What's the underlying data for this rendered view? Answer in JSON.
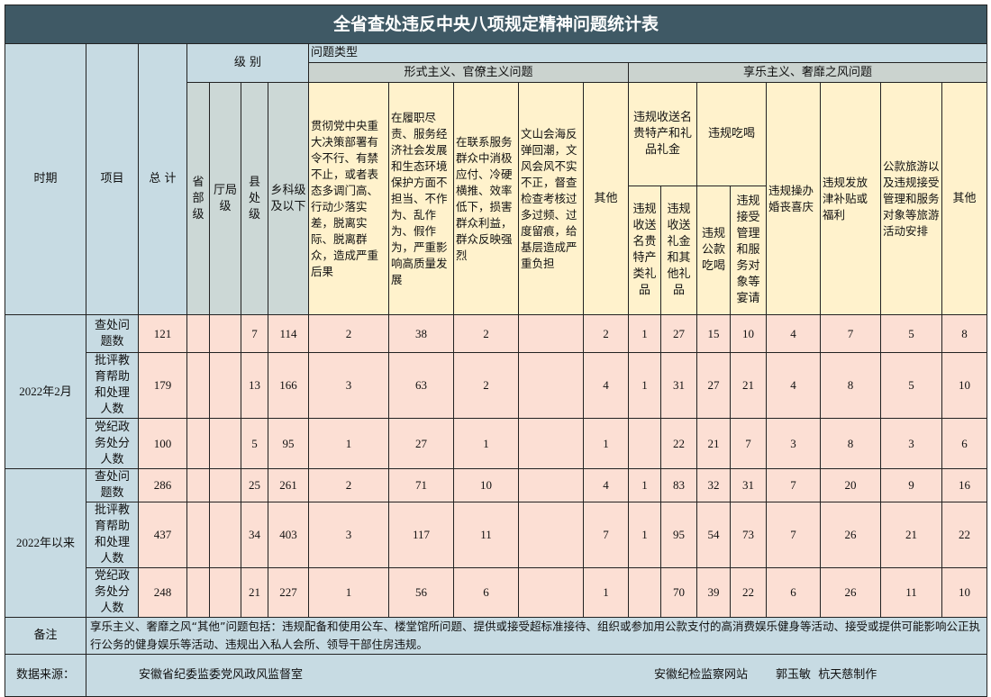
{
  "title": "全省查处违反中央八项规定精神问题统计表",
  "headers": {
    "period": "时期",
    "item": "项目",
    "total": "总 计",
    "level": "级 别",
    "levels": [
      "省部级",
      "厅局级",
      "县处级",
      "乡科级及以下"
    ],
    "problem_type": "问题类型",
    "formalism": {
      "label": "形式主义、官僚主义问题",
      "items": [
        "贯彻党中央重大决策部署有令不行、有禁不止，或者表态多调门高、行动少落实差，脱离实际、脱离群众，造成严重后果",
        "在履职尽责、服务经济社会发展和生态环境保护方面不担当、不作为、乱作为、假作为，严重影响高质量发展",
        "在联系服务群众中消极应付、冷硬横推、效率低下，损害群众利益，群众反映强烈",
        "文山会海反弹回潮，文风会风不实不正，督查检查考核过多过频、过度留痕，给基层造成严重负担",
        "其他"
      ]
    },
    "hedonism": {
      "label": "享乐主义、奢靡之风问题",
      "gifts": {
        "label": "违规收送名贵特产和礼品礼金",
        "subs": [
          "违规收送名贵特产类礼品",
          "违规收送礼金和其他礼品"
        ]
      },
      "dining": {
        "label": "违规吃喝",
        "subs": [
          "违规公款吃喝",
          "违规接受管理和服务对象等宴请"
        ]
      },
      "weddings": "违规操办婚丧喜庆",
      "allowances": "违规发放津补贴或福利",
      "travel": "公款旅游以及违规接受管理和服务对象等旅游活动安排",
      "other": "其他"
    }
  },
  "periods": [
    {
      "label": "2022年2月",
      "rows": [
        {
          "item": "查处问题数",
          "values": [
            "121",
            "",
            "",
            "7",
            "114",
            "2",
            "38",
            "2",
            "",
            "2",
            "1",
            "27",
            "15",
            "10",
            "4",
            "7",
            "5",
            "8"
          ]
        },
        {
          "item": "批评教育帮助和处理人数",
          "values": [
            "179",
            "",
            "",
            "13",
            "166",
            "3",
            "63",
            "2",
            "",
            "4",
            "1",
            "31",
            "27",
            "21",
            "4",
            "8",
            "5",
            "10"
          ]
        },
        {
          "item": "党纪政务处分人数",
          "values": [
            "100",
            "",
            "",
            "5",
            "95",
            "1",
            "27",
            "1",
            "",
            "1",
            "",
            "22",
            "21",
            "7",
            "3",
            "8",
            "3",
            "6"
          ]
        }
      ]
    },
    {
      "label": "2022年以来",
      "rows": [
        {
          "item": "查处问题数",
          "values": [
            "286",
            "",
            "",
            "25",
            "261",
            "2",
            "71",
            "10",
            "",
            "4",
            "1",
            "83",
            "32",
            "31",
            "7",
            "20",
            "9",
            "16"
          ]
        },
        {
          "item": "批评教育帮助和处理人数",
          "values": [
            "437",
            "",
            "",
            "34",
            "403",
            "3",
            "117",
            "11",
            "",
            "7",
            "1",
            "95",
            "54",
            "73",
            "7",
            "26",
            "21",
            "22"
          ]
        },
        {
          "item": "党纪政务处分人数",
          "values": [
            "248",
            "",
            "",
            "21",
            "227",
            "1",
            "56",
            "6",
            "",
            "1",
            "",
            "70",
            "39",
            "22",
            "6",
            "26",
            "11",
            "10"
          ]
        }
      ]
    }
  ],
  "remark": {
    "label": "备注",
    "text": "享乐主义、奢靡之风“其他”问题包括：违规配备和使用公车、楼堂馆所问题、提供或接受超标准接待、组织或参加用公款支付的高消费娱乐健身等活动、接受或提供可能影响公正执行公务的健身娱乐等活动、违规出入私人会所、领导干部住房违规。"
  },
  "source": {
    "label": "数据来源：",
    "org": "安徽省纪委监委党风政风监督室",
    "site": "安徽纪检监察网站",
    "authors": "郭玉敏  杭天慈制作"
  },
  "colors": {
    "title_bg": "#3f5965",
    "header_blue": "#c7dbe3",
    "header_yellow": "#fff2cc",
    "data_pink": "#fcdfd4"
  }
}
